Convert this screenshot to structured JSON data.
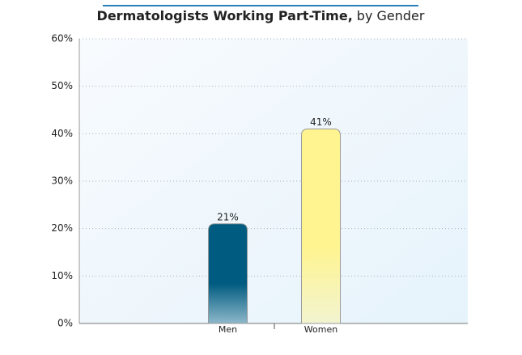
{
  "chart_data": {
    "type": "bar",
    "title": "Dermatologists Working Part-Time,",
    "title_suffix": "by Gender",
    "categories": [
      "Men",
      "Women"
    ],
    "values": [
      21,
      41
    ],
    "value_labels": [
      "21%",
      "41%"
    ],
    "colors": [
      "#005b80",
      "#fff48f"
    ],
    "ylim": [
      0,
      60
    ],
    "yticks": [
      {
        "value": 0,
        "label": "0%"
      },
      {
        "value": 10,
        "label": "10%"
      },
      {
        "value": 20,
        "label": "20%"
      },
      {
        "value": 30,
        "label": "30%"
      },
      {
        "value": 40,
        "label": "40%"
      },
      {
        "value": 50,
        "label": "50%"
      },
      {
        "value": 60,
        "label": "60%"
      }
    ],
    "grid": true
  }
}
